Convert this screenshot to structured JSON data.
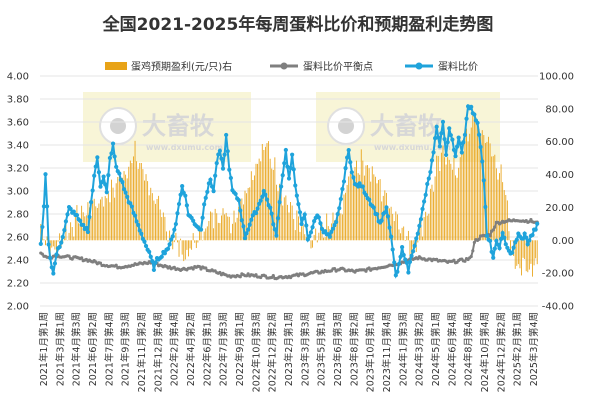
{
  "chart_data": {
    "type": "bar+line",
    "title": "全国2021-2025年每周蛋料比价和预期盈利走势图",
    "legend": [
      {
        "name": "蛋鸡预期盈利(元/只)右",
        "kind": "bar",
        "color": "#E8A317"
      },
      {
        "name": "蛋料比价平衡点",
        "kind": "line",
        "color": "#7F7F7F"
      },
      {
        "name": "蛋料比价",
        "kind": "line",
        "color": "#1FA3DB"
      }
    ],
    "left_axis": {
      "min": 2.0,
      "max": 4.0,
      "step": 0.2,
      "ticks": [
        "2.00",
        "2.20",
        "2.40",
        "2.60",
        "2.80",
        "3.00",
        "3.20",
        "3.40",
        "3.60",
        "3.80",
        "4.00"
      ]
    },
    "right_axis": {
      "min": -40,
      "max": 100,
      "step": 20,
      "ticks": [
        "-40.00",
        "-20.00",
        "0.00",
        "20.00",
        "40.00",
        "60.00",
        "80.00",
        "100.00"
      ]
    },
    "x_categories": [
      "2021年1月第1周",
      "2021年3月第1周",
      "2021年4月第3周",
      "2021年6月第2周",
      "2021年7月第4周",
      "2021年9月第3周",
      "2021年11月第2周",
      "2021年12月第4周",
      "2022年2月第4周",
      "2022年4月第2周",
      "2022年6月第1周",
      "2022年7月第3周",
      "2022年9月第1周",
      "2022年10月第3周",
      "2022年12月第2周",
      "2023年2月第1周",
      "2023年3月第3周",
      "2023年5月第1周",
      "2023年6月第3周",
      "2023年8月第2周",
      "2023年10月第1周",
      "2023年11月第4周",
      "2024年1月第3周",
      "2024年3月第2周",
      "2024年5月第1周",
      "2024年6月第4周",
      "2024年8月第4周",
      "2024年10月第4周",
      "2024年12月第2周",
      "2025年2月第1周",
      "2025年3月第4周"
    ],
    "profit_anchors": [
      [
        0,
        10
      ],
      [
        8,
        -8
      ],
      [
        14,
        2
      ],
      [
        24,
        14
      ],
      [
        34,
        22
      ],
      [
        44,
        28
      ],
      [
        52,
        40
      ],
      [
        60,
        52
      ],
      [
        68,
        36
      ],
      [
        76,
        16
      ],
      [
        82,
        4
      ],
      [
        88,
        -4
      ],
      [
        92,
        -10
      ],
      [
        98,
        -2
      ],
      [
        106,
        10
      ],
      [
        114,
        18
      ],
      [
        122,
        12
      ],
      [
        130,
        30
      ],
      [
        138,
        48
      ],
      [
        144,
        58
      ],
      [
        150,
        40
      ],
      [
        156,
        24
      ],
      [
        164,
        10
      ],
      [
        172,
        -4
      ],
      [
        180,
        6
      ],
      [
        190,
        14
      ],
      [
        198,
        44
      ],
      [
        206,
        48
      ],
      [
        214,
        36
      ],
      [
        222,
        22
      ],
      [
        228,
        12
      ],
      [
        232,
        4
      ],
      [
        236,
        -8
      ],
      [
        240,
        4
      ],
      [
        246,
        18
      ],
      [
        252,
        44
      ],
      [
        258,
        54
      ],
      [
        264,
        40
      ],
      [
        270,
        60
      ],
      [
        276,
        74
      ],
      [
        282,
        64
      ],
      [
        288,
        52
      ],
      [
        292,
        42
      ],
      [
        296,
        26
      ],
      [
        300,
        -8
      ],
      [
        304,
        -14
      ],
      [
        308,
        -18
      ],
      [
        312,
        -16
      ],
      [
        316,
        -12
      ]
    ],
    "ratio_anchors": [
      [
        0,
        2.55
      ],
      [
        2,
        2.85
      ],
      [
        3,
        3.16
      ],
      [
        5,
        2.55
      ],
      [
        6,
        2.42
      ],
      [
        8,
        2.28
      ],
      [
        10,
        2.45
      ],
      [
        14,
        2.6
      ],
      [
        18,
        2.85
      ],
      [
        22,
        2.8
      ],
      [
        26,
        2.7
      ],
      [
        30,
        2.66
      ],
      [
        32,
        2.9
      ],
      [
        34,
        3.12
      ],
      [
        36,
        3.3
      ],
      [
        38,
        3.05
      ],
      [
        40,
        3.12
      ],
      [
        42,
        2.98
      ],
      [
        44,
        3.28
      ],
      [
        46,
        3.4
      ],
      [
        48,
        3.2
      ],
      [
        50,
        3.15
      ],
      [
        54,
        2.98
      ],
      [
        58,
        2.85
      ],
      [
        62,
        2.7
      ],
      [
        66,
        2.56
      ],
      [
        70,
        2.42
      ],
      [
        72,
        2.33
      ],
      [
        74,
        2.4
      ],
      [
        78,
        2.46
      ],
      [
        82,
        2.52
      ],
      [
        86,
        2.72
      ],
      [
        90,
        3.05
      ],
      [
        92,
        2.95
      ],
      [
        94,
        2.8
      ],
      [
        98,
        2.72
      ],
      [
        102,
        2.66
      ],
      [
        104,
        2.9
      ],
      [
        108,
        3.1
      ],
      [
        110,
        3.0
      ],
      [
        112,
        3.25
      ],
      [
        114,
        3.35
      ],
      [
        116,
        3.18
      ],
      [
        118,
        3.48
      ],
      [
        120,
        3.2
      ],
      [
        122,
        3.0
      ],
      [
        126,
        2.92
      ],
      [
        130,
        2.6
      ],
      [
        134,
        2.75
      ],
      [
        138,
        2.85
      ],
      [
        142,
        3.0
      ],
      [
        146,
        2.85
      ],
      [
        150,
        2.6
      ],
      [
        152,
        2.92
      ],
      [
        154,
        3.15
      ],
      [
        156,
        3.35
      ],
      [
        158,
        3.1
      ],
      [
        160,
        3.3
      ],
      [
        162,
        3.05
      ],
      [
        164,
        2.9
      ],
      [
        166,
        2.7
      ],
      [
        168,
        2.8
      ],
      [
        170,
        2.58
      ],
      [
        172,
        2.65
      ],
      [
        176,
        2.8
      ],
      [
        180,
        2.65
      ],
      [
        184,
        2.6
      ],
      [
        188,
        2.72
      ],
      [
        192,
        3.0
      ],
      [
        194,
        3.2
      ],
      [
        196,
        3.35
      ],
      [
        198,
        3.18
      ],
      [
        200,
        3.05
      ],
      [
        204,
        3.05
      ],
      [
        208,
        2.95
      ],
      [
        212,
        2.85
      ],
      [
        216,
        2.72
      ],
      [
        220,
        2.85
      ],
      [
        222,
        2.68
      ],
      [
        224,
        2.5
      ],
      [
        226,
        2.25
      ],
      [
        228,
        2.35
      ],
      [
        230,
        2.5
      ],
      [
        232,
        2.42
      ],
      [
        234,
        2.3
      ],
      [
        236,
        2.45
      ],
      [
        240,
        2.62
      ],
      [
        244,
        2.9
      ],
      [
        246,
        3.05
      ],
      [
        248,
        3.15
      ],
      [
        250,
        3.35
      ],
      [
        252,
        3.55
      ],
      [
        254,
        3.4
      ],
      [
        256,
        3.6
      ],
      [
        258,
        3.3
      ],
      [
        260,
        3.55
      ],
      [
        262,
        3.45
      ],
      [
        264,
        3.3
      ],
      [
        266,
        3.45
      ],
      [
        268,
        3.35
      ],
      [
        270,
        3.5
      ],
      [
        272,
        3.75
      ],
      [
        274,
        3.72
      ],
      [
        276,
        3.65
      ],
      [
        278,
        3.6
      ],
      [
        280,
        3.4
      ],
      [
        282,
        3.1
      ],
      [
        284,
        2.6
      ],
      [
        286,
        2.55
      ],
      [
        288,
        2.42
      ],
      [
        290,
        2.55
      ],
      [
        292,
        2.52
      ],
      [
        294,
        2.62
      ],
      [
        296,
        2.55
      ],
      [
        298,
        2.48
      ],
      [
        300,
        2.45
      ],
      [
        302,
        2.55
      ],
      [
        304,
        2.62
      ],
      [
        306,
        2.58
      ],
      [
        308,
        2.62
      ],
      [
        310,
        2.55
      ],
      [
        312,
        2.6
      ],
      [
        314,
        2.65
      ],
      [
        316,
        2.7
      ]
    ],
    "balance_anchors": [
      [
        0,
        2.46
      ],
      [
        4,
        2.42
      ],
      [
        10,
        2.44
      ],
      [
        20,
        2.42
      ],
      [
        30,
        2.4
      ],
      [
        40,
        2.36
      ],
      [
        50,
        2.34
      ],
      [
        60,
        2.36
      ],
      [
        70,
        2.38
      ],
      [
        80,
        2.34
      ],
      [
        90,
        2.32
      ],
      [
        100,
        2.34
      ],
      [
        110,
        2.3
      ],
      [
        120,
        2.26
      ],
      [
        130,
        2.27
      ],
      [
        140,
        2.26
      ],
      [
        150,
        2.25
      ],
      [
        160,
        2.26
      ],
      [
        170,
        2.28
      ],
      [
        180,
        2.3
      ],
      [
        190,
        2.32
      ],
      [
        200,
        2.3
      ],
      [
        210,
        2.32
      ],
      [
        220,
        2.35
      ],
      [
        230,
        2.38
      ],
      [
        240,
        2.42
      ],
      [
        250,
        2.4
      ],
      [
        260,
        2.38
      ],
      [
        270,
        2.4
      ],
      [
        274,
        2.42
      ],
      [
        276,
        2.56
      ],
      [
        280,
        2.6
      ],
      [
        286,
        2.62
      ],
      [
        290,
        2.72
      ],
      [
        296,
        2.74
      ],
      [
        300,
        2.74
      ],
      [
        304,
        2.75
      ],
      [
        308,
        2.74
      ],
      [
        312,
        2.74
      ],
      [
        316,
        2.72
      ]
    ],
    "total_weeks": 317
  },
  "watermark": {
    "brand": "大畜牧",
    "site": "www.dxumu.com"
  }
}
